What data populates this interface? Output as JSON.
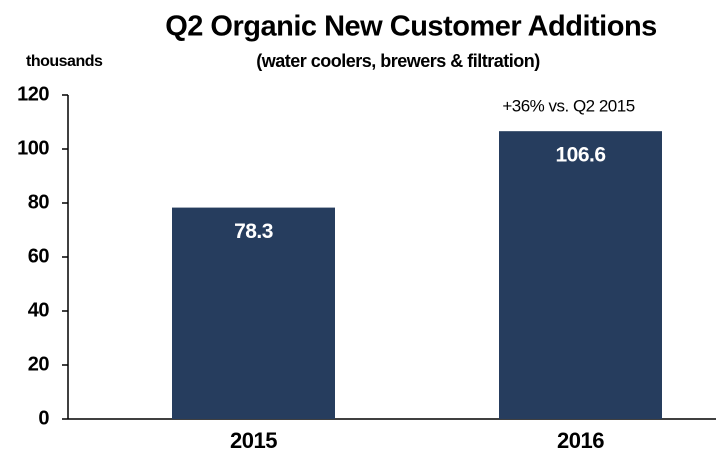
{
  "chart_data": {
    "type": "bar",
    "title": "Q2 Organic New Customer Additions",
    "subtitle": "(water coolers, brewers & filtration)",
    "y_label": "thousands",
    "annotation": "+36% vs. Q2 2015",
    "categories": [
      "2015",
      "2016"
    ],
    "values": [
      78.3,
      106.6
    ],
    "color": "#263d5e",
    "ylim": [
      0,
      120
    ],
    "yticks": [
      0,
      20,
      40,
      60,
      80,
      100,
      120
    ],
    "grid": false
  }
}
